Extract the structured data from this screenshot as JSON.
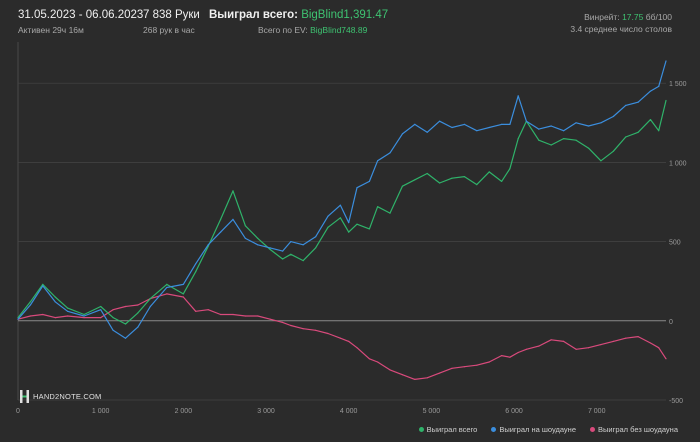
{
  "header": {
    "date_range": "31.05.2023 - 06.06.2023",
    "active_time": "Активен 29ч 16м",
    "hands_count": "7 838 Руки",
    "hands_per_hour": "268 рук в час",
    "won_total_label": "Выиграл всего:",
    "won_total_value": "BigBlind1,391.47",
    "ev_label": "Всего по EV:",
    "ev_value": "BigBlind748.89",
    "vpip_label": "Винрейт:",
    "vpip_value": "17.75",
    "vpip_suffix": "бб/100",
    "tables_avg": "3.4 среднее число столов"
  },
  "logo": {
    "text": "HAND2NOTE.COM"
  },
  "colors": {
    "background": "#2b2b2b",
    "grid": "#444444",
    "zero_line": "#8a8a8a",
    "total": "#2fb36a",
    "showdown": "#3b8ede",
    "non_showdown": "#d94a7c"
  },
  "chart_data": {
    "type": "line",
    "x_ticks": [
      0,
      1000,
      2000,
      3000,
      4000,
      5000,
      6000,
      7000
    ],
    "x_tick_labels": [
      "0",
      "1 000",
      "2 000",
      "3 000",
      "4 000",
      "5 000",
      "6 000",
      "7 000"
    ],
    "y_ticks": [
      -500,
      0,
      500,
      1000,
      1500
    ],
    "y_tick_labels": [
      "-500",
      "0",
      "500",
      "1 000",
      "1 500"
    ],
    "xlim": [
      0,
      7838
    ],
    "ylim": [
      -500,
      1760
    ],
    "grid": true,
    "legend_position": "bottom-right",
    "series": [
      {
        "name": "Выиграл всего",
        "color": "#2fb36a",
        "x": [
          0,
          150,
          300,
          450,
          600,
          800,
          1000,
          1150,
          1300,
          1450,
          1600,
          1800,
          2000,
          2150,
          2300,
          2450,
          2600,
          2750,
          2900,
          3050,
          3200,
          3300,
          3450,
          3600,
          3750,
          3900,
          4000,
          4100,
          4250,
          4350,
          4500,
          4650,
          4800,
          4950,
          5100,
          5250,
          5400,
          5550,
          5700,
          5850,
          5950,
          6050,
          6150,
          6300,
          6450,
          6600,
          6750,
          6900,
          7050,
          7200,
          7350,
          7500,
          7650,
          7750,
          7838
        ],
        "y": [
          20,
          120,
          230,
          150,
          80,
          40,
          90,
          20,
          -20,
          50,
          140,
          230,
          170,
          310,
          470,
          640,
          820,
          600,
          520,
          450,
          390,
          420,
          380,
          460,
          590,
          650,
          560,
          610,
          580,
          720,
          680,
          850,
          890,
          930,
          870,
          900,
          910,
          860,
          940,
          880,
          960,
          1150,
          1260,
          1140,
          1110,
          1150,
          1140,
          1090,
          1010,
          1070,
          1160,
          1190,
          1270,
          1200,
          1391
        ]
      },
      {
        "name": "Выиграл на шоудауне",
        "color": "#3b8ede",
        "x": [
          0,
          150,
          300,
          450,
          600,
          800,
          1000,
          1150,
          1300,
          1450,
          1600,
          1800,
          2000,
          2150,
          2300,
          2450,
          2600,
          2750,
          2900,
          3050,
          3200,
          3300,
          3450,
          3600,
          3750,
          3900,
          4000,
          4100,
          4250,
          4350,
          4500,
          4650,
          4800,
          4950,
          5100,
          5250,
          5400,
          5550,
          5700,
          5850,
          5950,
          6050,
          6150,
          6300,
          6450,
          6600,
          6750,
          6900,
          7050,
          7200,
          7350,
          7500,
          7650,
          7750,
          7838
        ],
        "y": [
          10,
          100,
          220,
          120,
          60,
          30,
          70,
          -60,
          -110,
          -40,
          90,
          210,
          230,
          360,
          480,
          560,
          640,
          520,
          480,
          460,
          440,
          500,
          480,
          530,
          660,
          730,
          620,
          840,
          880,
          1010,
          1060,
          1180,
          1240,
          1190,
          1260,
          1220,
          1240,
          1200,
          1220,
          1240,
          1240,
          1420,
          1260,
          1210,
          1230,
          1200,
          1250,
          1230,
          1250,
          1290,
          1360,
          1380,
          1450,
          1480,
          1640
        ]
      },
      {
        "name": "Выиграл без шоудауна",
        "color": "#d94a7c",
        "x": [
          0,
          150,
          300,
          450,
          600,
          800,
          1000,
          1150,
          1300,
          1450,
          1600,
          1800,
          2000,
          2150,
          2300,
          2450,
          2600,
          2750,
          2900,
          3050,
          3200,
          3300,
          3450,
          3600,
          3750,
          3900,
          4000,
          4100,
          4250,
          4350,
          4500,
          4650,
          4800,
          4950,
          5100,
          5250,
          5400,
          5550,
          5700,
          5850,
          5950,
          6050,
          6150,
          6300,
          6450,
          6600,
          6750,
          6900,
          7050,
          7200,
          7350,
          7500,
          7650,
          7750,
          7838
        ],
        "y": [
          10,
          30,
          40,
          20,
          30,
          20,
          20,
          70,
          90,
          100,
          140,
          170,
          150,
          60,
          70,
          40,
          40,
          30,
          30,
          10,
          -10,
          -30,
          -50,
          -60,
          -80,
          -110,
          -130,
          -170,
          -240,
          -260,
          -310,
          -340,
          -370,
          -360,
          -330,
          -300,
          -290,
          -280,
          -260,
          -220,
          -230,
          -200,
          -180,
          -160,
          -120,
          -130,
          -180,
          -170,
          -150,
          -130,
          -110,
          -100,
          -140,
          -170,
          -240
        ]
      }
    ]
  }
}
